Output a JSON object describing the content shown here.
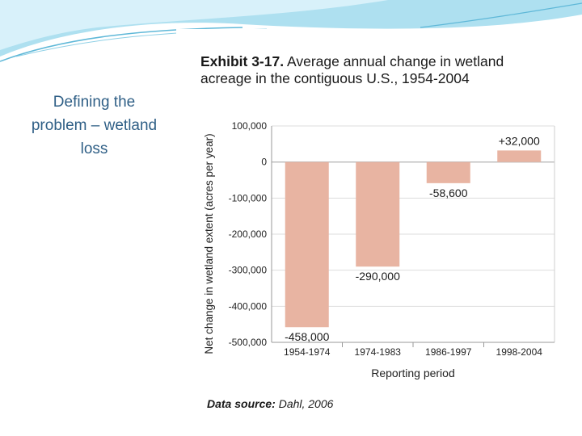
{
  "slide": {
    "side_title_lines": [
      "Defining the",
      "problem – wetland",
      "loss"
    ],
    "exhibit_label": "Exhibit 3-17.",
    "exhibit_title_line1": "Average annual change in wetland",
    "exhibit_title_line2": "acreage in the contiguous U.S., 1954-2004",
    "source_label": "Data source:",
    "source_text": "Dahl, 2006",
    "colors": {
      "title_text": "#2f5f86",
      "bar": "#e8b4a2",
      "grid": "#dddddd",
      "deco_blue": "#5fb8d8"
    }
  },
  "chart_data": {
    "type": "bar",
    "title": "Average annual change in wetland acreage in the contiguous U.S., 1954-2004",
    "categories": [
      "1954-1974",
      "1974-1983",
      "1986-1997",
      "1998-2004"
    ],
    "values": [
      -458000,
      -290000,
      -58600,
      32000
    ],
    "data_labels": [
      "-458,000",
      "-290,000",
      "-58,600",
      "+32,000"
    ],
    "xlabel": "Reporting period",
    "ylabel": "Net change in wetland extent (acres per year)",
    "ylim": [
      -500000,
      100000
    ],
    "yticks": [
      100000,
      0,
      -100000,
      -200000,
      -300000,
      -400000,
      -500000
    ],
    "ytick_labels": [
      "100,000",
      "0",
      "-100,000",
      "-200,000",
      "-300,000",
      "-400,000",
      "-500,000"
    ],
    "grid": true,
    "legend": "none"
  }
}
